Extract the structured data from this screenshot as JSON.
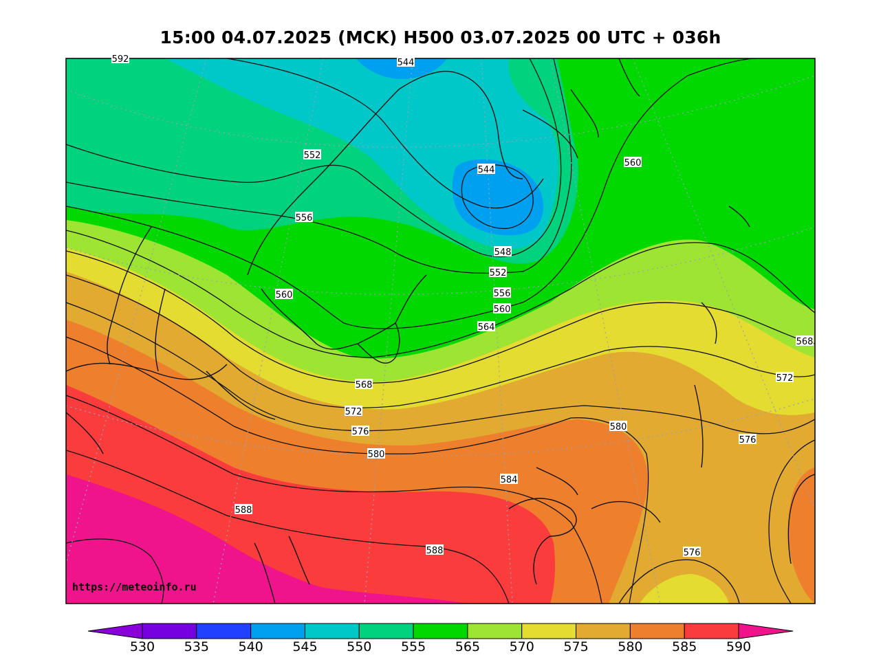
{
  "title": "15:00 04.07.2025 (MCK) H500  03.07.2025 00 UTC + 036h",
  "watermark": "https://meteoinfo.ru",
  "colorbar": {
    "ticks": [
      "530",
      "535",
      "540",
      "545",
      "550",
      "555",
      "565",
      "570",
      "575",
      "580",
      "585",
      "590"
    ],
    "colors": [
      "#8a00d8",
      "#7700e0",
      "#2240ff",
      "#00a0f0",
      "#00c8c8",
      "#00d27e",
      "#00d800",
      "#9ee432",
      "#e4dc30",
      "#e2aa30",
      "#ee7f2c",
      "#fa3c3c",
      "#f0148c"
    ]
  },
  "contour_labels": [
    "544",
    "544",
    "552",
    "556",
    "560",
    "560",
    "548",
    "552",
    "556",
    "560",
    "564",
    "568",
    "572",
    "576",
    "580",
    "584",
    "588",
    "588",
    "580",
    "576",
    "576",
    "568",
    "572",
    "592"
  ],
  "field_colors": {
    "lt_544": "#00a0f0",
    "545_550": "#00c8c8",
    "550_555": "#00d27e",
    "555_565": "#00d800",
    "565_570": "#9ee432",
    "570_575": "#e4dc30",
    "575_580": "#e2aa30",
    "580_585": "#ee7f2c",
    "585_590": "#fa3c3c",
    "gt_590": "#f0148c"
  }
}
